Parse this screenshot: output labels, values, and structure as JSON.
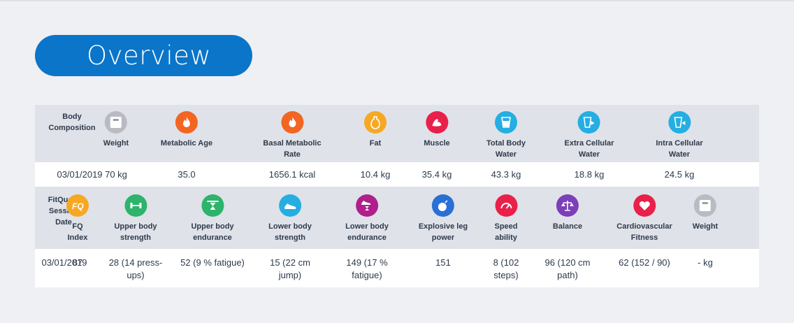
{
  "page": {
    "title": "Overview"
  },
  "body_composition": {
    "row_header": "Body\nComposition",
    "date": "03/01/2019",
    "columns": [
      {
        "label": "Weight",
        "value": "70 kg",
        "icon": "scale-icon",
        "color": "#b8bcc2"
      },
      {
        "label": "Metabolic Age",
        "value": "35.0",
        "icon": "flame-age-icon",
        "color": "#f26522"
      },
      {
        "label": "Basal Metabolic\nRate",
        "value": "1656.1 kcal",
        "icon": "flame-icon",
        "color": "#f26522"
      },
      {
        "label": "Fat",
        "value": "10.4 kg",
        "icon": "fat-drop-icon",
        "color": "#f7a823"
      },
      {
        "label": "Muscle",
        "value": "35.4 kg",
        "icon": "bicep-icon",
        "color": "#e8204a"
      },
      {
        "label": "Total Body\nWater",
        "value": "43.3 kg",
        "icon": "water-glass-icon",
        "color": "#24aee2"
      },
      {
        "label": "Extra Cellular\nWater",
        "value": "18.8 kg",
        "icon": "water-out-icon",
        "color": "#24aee2"
      },
      {
        "label": "Intra Cellular\nWater",
        "value": "24.5 kg",
        "icon": "water-in-icon",
        "color": "#24aee2"
      }
    ]
  },
  "fitquest": {
    "row_header": "FitQuest\nSession\nDate",
    "date": "03/01/2019",
    "columns": [
      {
        "label": "FQ\nIndex",
        "value": "87",
        "icon": "fq-logo-icon",
        "color": "#f7a823",
        "icon_text": "FQ"
      },
      {
        "label": "Upper body\nstrength",
        "value": "28 (14 press-\nups)",
        "icon": "dumbbell-icon",
        "color": "#2db36b"
      },
      {
        "label": "Upper body\nendurance",
        "value": "52 (9 % fatigue)",
        "icon": "hourglass-dumbbell-icon",
        "color": "#2db36b"
      },
      {
        "label": "Lower body\nstrength",
        "value": "15 (22 cm\njump)",
        "icon": "shoe-icon",
        "color": "#24aee2"
      },
      {
        "label": "Lower body\nendurance",
        "value": "149 (17 %\nfatigue)",
        "icon": "shoe-hourglass-icon",
        "color": "#b0208c"
      },
      {
        "label": "Explosive leg\npower",
        "value": "151",
        "icon": "bomb-icon",
        "color": "#2a6fd6"
      },
      {
        "label": "Speed\nability",
        "value": "8 (102\nsteps)",
        "icon": "speedometer-icon",
        "color": "#e8204a"
      },
      {
        "label": "Balance",
        "value": "96 (120 cm\npath)",
        "icon": "balance-scale-icon",
        "color": "#7b3fb8"
      },
      {
        "label": "Cardiovascular\nFitness",
        "value": "62 (152 / 90)",
        "icon": "hearts-icon",
        "color": "#e8204a"
      },
      {
        "label": "Weight",
        "value": "- kg",
        "icon": "scale-icon",
        "color": "#b8bcc2"
      }
    ]
  }
}
